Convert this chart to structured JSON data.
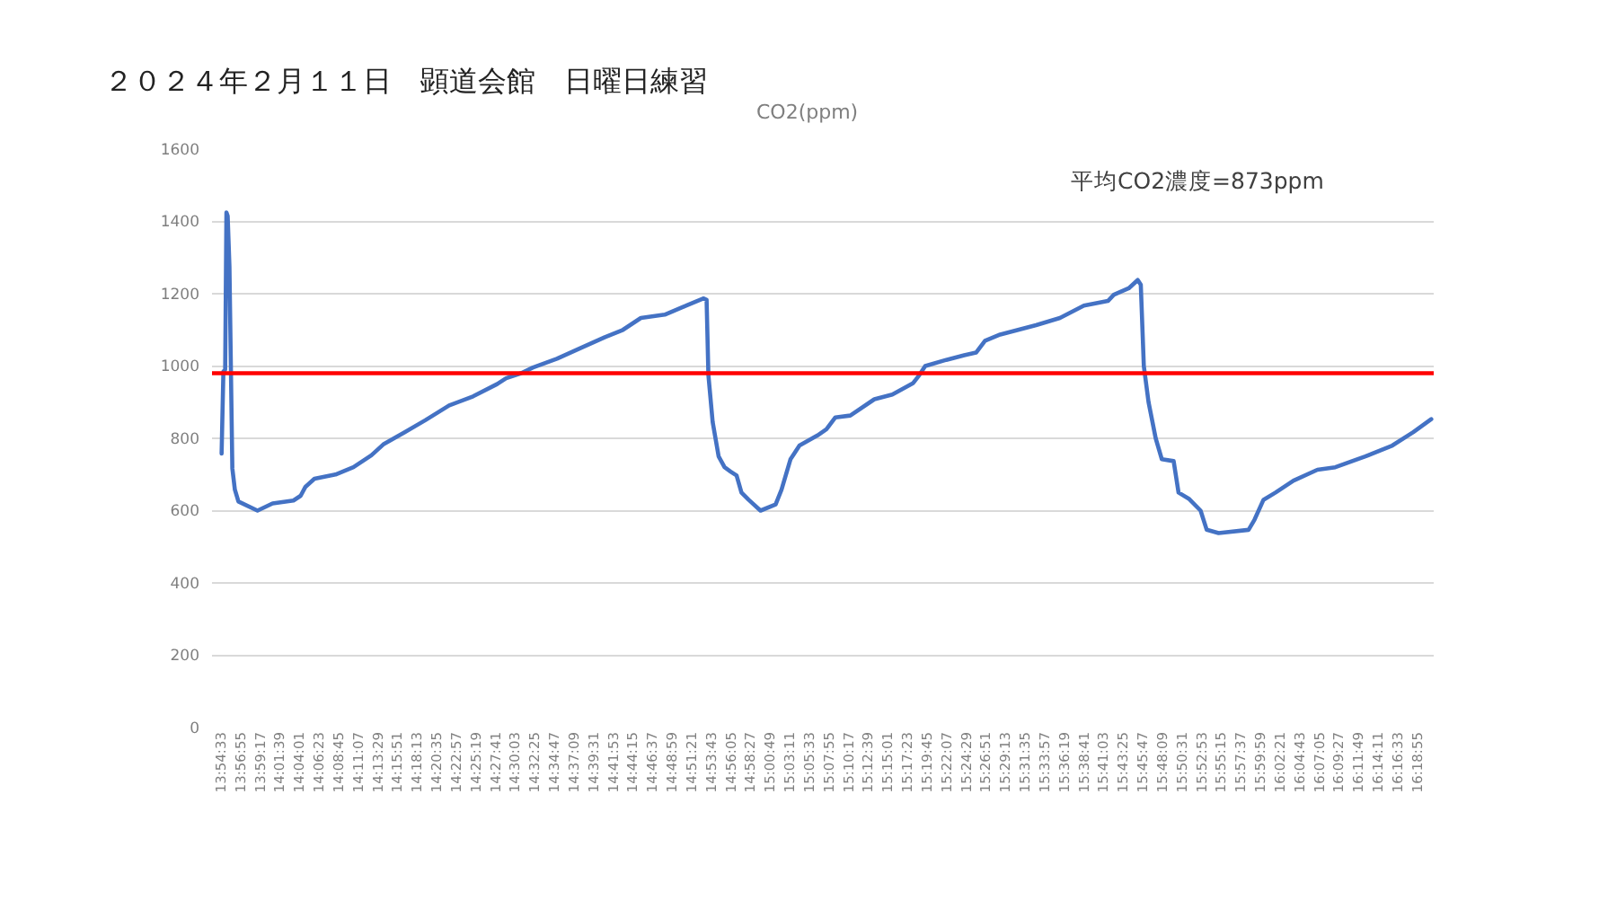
{
  "chart_data": {
    "type": "line",
    "title": "２０２４年２月１１日　顕道会館　日曜日練習",
    "subtitle": "CO2(ppm)",
    "annotations": [
      "平均CO2濃度=873ppm"
    ],
    "x": [
      13.9103,
      13.9139,
      13.9175,
      13.92,
      13.9225,
      13.9261,
      13.9319,
      13.937,
      13.9442,
      13.9825,
      14.0128,
      14.0548,
      14.0692,
      14.079,
      14.097,
      14.1393,
      14.1754,
      14.2116,
      14.2354,
      14.2777,
      14.3199,
      14.368,
      14.416,
      14.4644,
      14.4825,
      14.5125,
      14.5367,
      14.5847,
      14.6328,
      14.6812,
      14.7173,
      14.7535,
      14.8015,
      14.8376,
      14.8799,
      14.8857,
      14.8893,
      14.8979,
      14.9099,
      14.9218,
      14.9341,
      14.946,
      14.9558,
      14.9702,
      14.9941,
      15.0245,
      15.0364,
      15.0544,
      15.0725,
      15.1086,
      15.1267,
      15.1447,
      15.1747,
      15.2231,
      15.2592,
      15.3012,
      15.3135,
      15.3254,
      15.3677,
      15.4038,
      15.4276,
      15.4457,
      15.4761,
      15.5483,
      15.5963,
      15.6444,
      15.6928,
      15.7047,
      15.7347,
      15.7528,
      15.7589,
      15.765,
      15.7745,
      15.7889,
      15.8012,
      15.825,
      15.8348,
      15.8554,
      15.8792,
      15.8915,
      15.9154,
      15.9757,
      15.9876,
      16.0057,
      16.0299,
      16.066,
      16.1141,
      16.1502,
      16.2105,
      16.2647,
      16.3069,
      16.3431
    ],
    "series": [
      {
        "color": "#4472c4",
        "values": [
          758,
          985,
          990,
          1425,
          1415,
          1275,
          717,
          658,
          625,
          600,
          620,
          628,
          641,
          666,
          688,
          700,
          720,
          753,
          783,
          816,
          850,
          891,
          916,
          950,
          966,
          980,
          996,
          1020,
          1050,
          1080,
          1100,
          1133,
          1142,
          1163,
          1187,
          1183,
          975,
          845,
          750,
          720,
          708,
          697,
          650,
          630,
          600,
          617,
          658,
          742,
          780,
          808,
          825,
          858,
          863,
          908,
          921,
          953,
          975,
          1000,
          1017,
          1030,
          1037,
          1070,
          1087,
          1113,
          1133,
          1167,
          1180,
          1197,
          1215,
          1238,
          1225,
          1000,
          900,
          800,
          742,
          737,
          650,
          633,
          600,
          547,
          538,
          547,
          575,
          630,
          650,
          683,
          713,
          720,
          750,
          780,
          817,
          853
        ]
      }
    ],
    "xlim": [
      13.891,
      16.348
    ],
    "xticks": [
      {
        "value": 13.909167,
        "label": "13:54:33"
      },
      {
        "value": 13.948611,
        "label": "13:56:55"
      },
      {
        "value": 13.988056,
        "label": "13:59:17"
      },
      {
        "value": 14.0275,
        "label": "14:01:39"
      },
      {
        "value": 14.066944,
        "label": "14:04:01"
      },
      {
        "value": 14.106389,
        "label": "14:06:23"
      },
      {
        "value": 14.145833,
        "label": "14:08:45"
      },
      {
        "value": 14.185278,
        "label": "14:11:07"
      },
      {
        "value": 14.224722,
        "label": "14:13:29"
      },
      {
        "value": 14.264167,
        "label": "14:15:51"
      },
      {
        "value": 14.303611,
        "label": "14:18:13"
      },
      {
        "value": 14.343056,
        "label": "14:20:35"
      },
      {
        "value": 14.3825,
        "label": "14:22:57"
      },
      {
        "value": 14.421944,
        "label": "14:25:19"
      },
      {
        "value": 14.461389,
        "label": "14:27:41"
      },
      {
        "value": 14.500833,
        "label": "14:30:03"
      },
      {
        "value": 14.540278,
        "label": "14:32:25"
      },
      {
        "value": 14.579722,
        "label": "14:34:47"
      },
      {
        "value": 14.619167,
        "label": "14:37:09"
      },
      {
        "value": 14.658611,
        "label": "14:39:31"
      },
      {
        "value": 14.698056,
        "label": "14:41:53"
      },
      {
        "value": 14.7375,
        "label": "14:44:15"
      },
      {
        "value": 14.776944,
        "label": "14:46:37"
      },
      {
        "value": 14.816389,
        "label": "14:48:59"
      },
      {
        "value": 14.855833,
        "label": "14:51:21"
      },
      {
        "value": 14.895278,
        "label": "14:53:43"
      },
      {
        "value": 14.934722,
        "label": "14:56:05"
      },
      {
        "value": 14.974167,
        "label": "14:58:27"
      },
      {
        "value": 15.013611,
        "label": "15:00:49"
      },
      {
        "value": 15.053056,
        "label": "15:03:11"
      },
      {
        "value": 15.0925,
        "label": "15:05:33"
      },
      {
        "value": 15.131944,
        "label": "15:07:55"
      },
      {
        "value": 15.171389,
        "label": "15:10:17"
      },
      {
        "value": 15.210833,
        "label": "15:12:39"
      },
      {
        "value": 15.250278,
        "label": "15:15:01"
      },
      {
        "value": 15.289722,
        "label": "15:17:23"
      },
      {
        "value": 15.329167,
        "label": "15:19:45"
      },
      {
        "value": 15.368611,
        "label": "15:22:07"
      },
      {
        "value": 15.408056,
        "label": "15:24:29"
      },
      {
        "value": 15.4475,
        "label": "15:26:51"
      },
      {
        "value": 15.486944,
        "label": "15:29:13"
      },
      {
        "value": 15.526389,
        "label": "15:31:35"
      },
      {
        "value": 15.565833,
        "label": "15:33:57"
      },
      {
        "value": 15.605278,
        "label": "15:36:19"
      },
      {
        "value": 15.644722,
        "label": "15:38:41"
      },
      {
        "value": 15.684167,
        "label": "15:41:03"
      },
      {
        "value": 15.723611,
        "label": "15:43:25"
      },
      {
        "value": 15.763056,
        "label": "15:45:47"
      },
      {
        "value": 15.8025,
        "label": "15:48:09"
      },
      {
        "value": 15.841944,
        "label": "15:50:31"
      },
      {
        "value": 15.881389,
        "label": "15:52:53"
      },
      {
        "value": 15.920833,
        "label": "15:55:15"
      },
      {
        "value": 15.960278,
        "label": "15:57:37"
      },
      {
        "value": 15.999722,
        "label": "15:59:59"
      },
      {
        "value": 16.039167,
        "label": "16:02:21"
      },
      {
        "value": 16.078611,
        "label": "16:04:43"
      },
      {
        "value": 16.118056,
        "label": "16:07:05"
      },
      {
        "value": 16.1575,
        "label": "16:09:27"
      },
      {
        "value": 16.196944,
        "label": "16:11:49"
      },
      {
        "value": 16.236389,
        "label": "16:14:11"
      },
      {
        "value": 16.275833,
        "label": "16:16:33"
      },
      {
        "value": 16.315278,
        "label": "16:18:55"
      }
    ],
    "ylim": [
      0,
      1600
    ],
    "yticks": [
      0,
      200,
      400,
      600,
      800,
      1000,
      1200,
      1400,
      1600
    ],
    "grid": "y",
    "ref_lines": [
      {
        "axis": "y",
        "value": 980,
        "color": "#ff0000"
      }
    ]
  }
}
